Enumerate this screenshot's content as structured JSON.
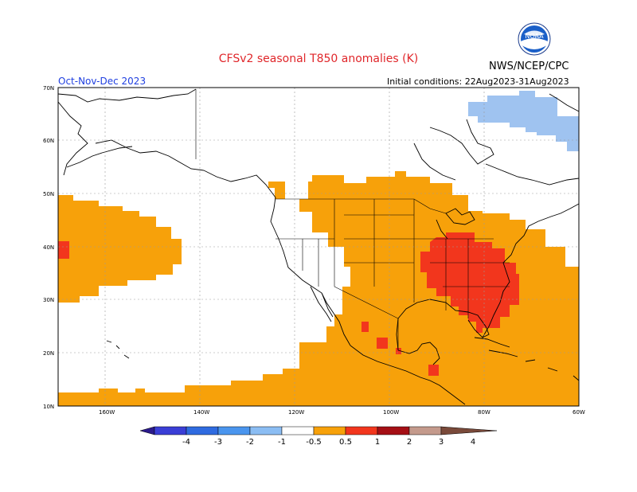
{
  "header": {
    "title": "CFSv2 seasonal T850 anomalies (K)",
    "organization": "NWS/NCEP/CPC",
    "season": "Oct-Nov-Dec 2023",
    "initial_conditions": "Initial conditions: 22Aug2023-31Aug2023",
    "logo_text": "NOAA"
  },
  "map": {
    "lat_labels": [
      "70N",
      "60N",
      "50N",
      "40N",
      "30N",
      "20N",
      "10N"
    ],
    "lon_labels": [
      "160W",
      "140W",
      "120W",
      "100W",
      "80W",
      "60W"
    ],
    "colors": {
      "orange": "#f7a10a",
      "red": "#f2361d",
      "blue": "#9fc3f0",
      "coast": "#000000",
      "grid": "#888888"
    }
  },
  "colorbar": {
    "labels": [
      "-4",
      "-3",
      "-2",
      "-1",
      "-0.5",
      "0.5",
      "1",
      "2",
      "3",
      "4"
    ],
    "colors": [
      "#2b1a8c",
      "#3a3ed6",
      "#2f6be0",
      "#4a95ee",
      "#8bbdf3",
      "#ffffff",
      "#f7a10a",
      "#f2361d",
      "#a50f15",
      "#c49a8c",
      "#7a4a3a"
    ]
  }
}
